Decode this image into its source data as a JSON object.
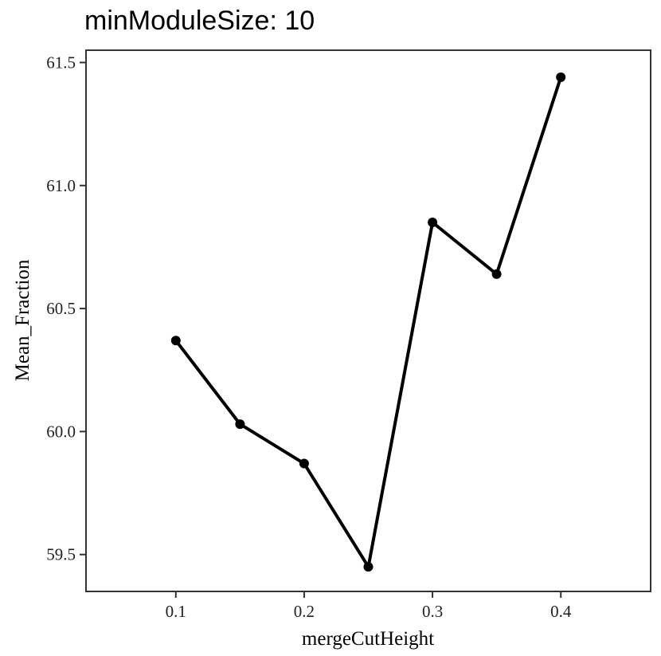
{
  "chart_data": {
    "type": "line",
    "title": "minModuleSize: 10",
    "xlabel": "mergeCutHeight",
    "ylabel": "Mean_Fraction",
    "x": [
      0.1,
      0.15,
      0.2,
      0.25,
      0.3,
      0.35,
      0.4
    ],
    "series": [
      {
        "values": [
          60.37,
          60.03,
          59.87,
          59.45,
          60.85,
          60.64,
          61.44
        ],
        "color": "#000000"
      }
    ],
    "x_ticks": [
      0.1,
      0.2,
      0.3,
      0.4
    ],
    "x_tick_labels": [
      "0.1",
      "0.2",
      "0.3",
      "0.4"
    ],
    "y_ticks": [
      59.5,
      60.0,
      60.5,
      61.0,
      61.5
    ],
    "y_tick_labels": [
      "59.5",
      "60.0",
      "60.5",
      "61.0",
      "61.5"
    ],
    "xlim": [
      0.03,
      0.47
    ],
    "ylim": [
      59.35,
      61.55
    ],
    "grid": false,
    "legend": "none"
  }
}
